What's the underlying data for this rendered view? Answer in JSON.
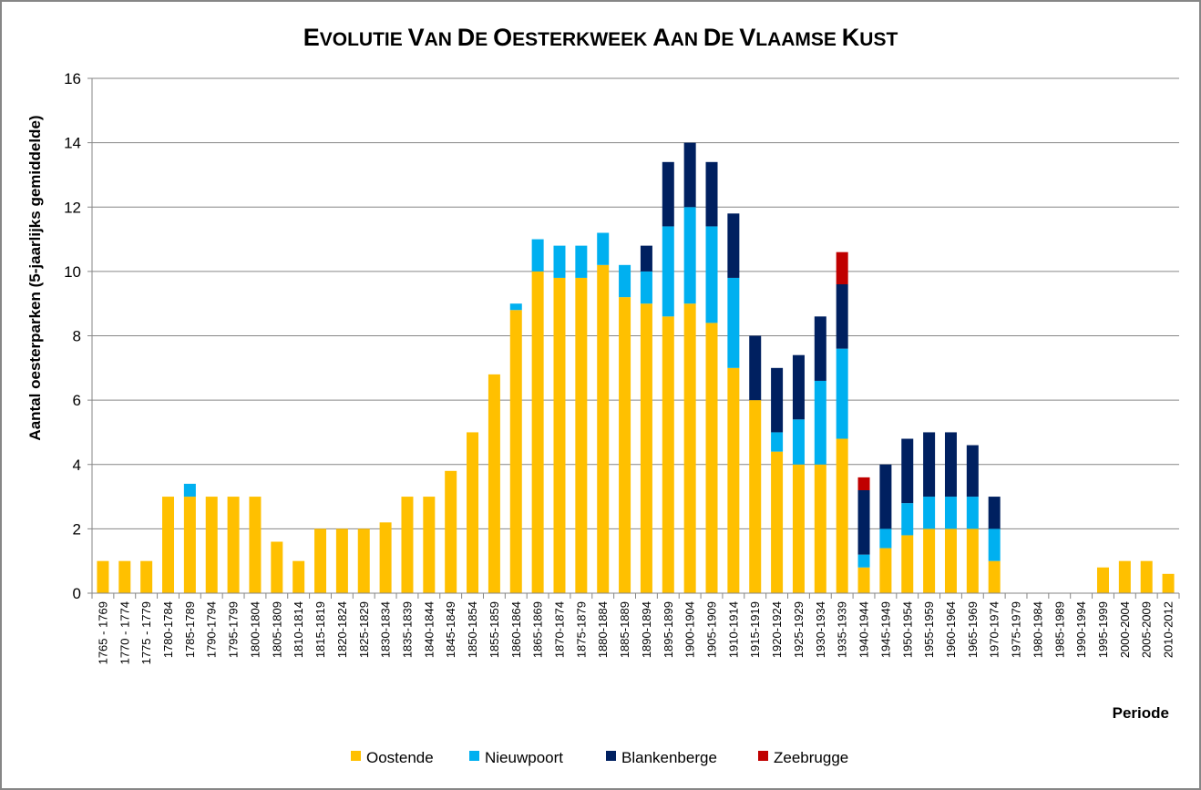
{
  "chart_data": {
    "type": "bar",
    "stacked": true,
    "title": "Evolutie van de oesterkweek aan de Vlaamse kust",
    "xlabel": "Periode",
    "ylabel": "Aantal oesterparken (5-jaarlijks gemiddelde)",
    "ylim": [
      0,
      16
    ],
    "yticks": [
      0,
      2,
      4,
      6,
      8,
      10,
      12,
      14,
      16
    ],
    "grid": true,
    "legend_position": "bottom",
    "categories": [
      "1765 - 1769",
      "1770 - 1774",
      "1775 - 1779",
      "1780-1784",
      "1785-1789",
      "1790-1794",
      "1795-1799",
      "1800-1804",
      "1805-1809",
      "1810-1814",
      "1815-1819",
      "1820-1824",
      "1825-1829",
      "1830-1834",
      "1835-1839",
      "1840-1844",
      "1845-1849",
      "1850-1854",
      "1855-1859",
      "1860-1864",
      "1865-1869",
      "1870-1874",
      "1875-1879",
      "1880-1884",
      "1885-1889",
      "1890-1894",
      "1895-1899",
      "1900-1904",
      "1905-1909",
      "1910-1914",
      "1915-1919",
      "1920-1924",
      "1925-1929",
      "1930-1934",
      "1935-1939",
      "1940-1944",
      "1945-1949",
      "1950-1954",
      "1955-1959",
      "1960-1964",
      "1965-1969",
      "1970-1974",
      "1975-1979",
      "1980-1984",
      "1985-1989",
      "1990-1994",
      "1995-1999",
      "2000-2004",
      "2005-2009",
      "2010-2012"
    ],
    "series": [
      {
        "name": "Oostende",
        "color": "#FFC000",
        "values": [
          1,
          1,
          1,
          3,
          3,
          3,
          3,
          3,
          1.6,
          1,
          2,
          2,
          2,
          2.2,
          3,
          3,
          3.8,
          5,
          6.8,
          8.8,
          10,
          9.8,
          9.8,
          10.2,
          9.2,
          9,
          8.6,
          9,
          8.4,
          7,
          6,
          4.4,
          4,
          4,
          4.8,
          0.8,
          1.4,
          1.8,
          2,
          2,
          2,
          1,
          0,
          0,
          0,
          0,
          0.8,
          1,
          1,
          0.6
        ]
      },
      {
        "name": "Nieuwpoort",
        "color": "#00B0F0",
        "values": [
          0,
          0,
          0,
          0,
          0.4,
          0,
          0,
          0,
          0,
          0,
          0,
          0,
          0,
          0,
          0,
          0,
          0,
          0,
          0,
          0.2,
          1,
          1,
          1,
          1,
          1,
          1,
          2.8,
          3,
          3,
          2.8,
          0,
          0.6,
          1.4,
          2.6,
          2.8,
          0.4,
          0.6,
          1,
          1,
          1,
          1,
          1,
          0,
          0,
          0,
          0,
          0,
          0,
          0,
          0
        ]
      },
      {
        "name": "Blankenberge",
        "color": "#002060",
        "values": [
          0,
          0,
          0,
          0,
          0,
          0,
          0,
          0,
          0,
          0,
          0,
          0,
          0,
          0,
          0,
          0,
          0,
          0,
          0,
          0,
          0,
          0,
          0,
          0,
          0,
          0.8,
          2,
          2,
          2,
          2,
          2,
          2,
          2,
          2,
          2,
          2,
          2,
          2,
          2,
          2,
          1.6,
          1,
          0,
          0,
          0,
          0,
          0,
          0,
          0,
          0
        ]
      },
      {
        "name": "Zeebrugge",
        "color": "#C00000",
        "values": [
          0,
          0,
          0,
          0,
          0,
          0,
          0,
          0,
          0,
          0,
          0,
          0,
          0,
          0,
          0,
          0,
          0,
          0,
          0,
          0,
          0,
          0,
          0,
          0,
          0,
          0,
          0,
          0,
          0,
          0,
          0,
          0,
          0,
          0,
          1,
          0.4,
          0,
          0,
          0,
          0,
          0,
          0,
          0,
          0,
          0,
          0,
          0,
          0,
          0,
          0
        ]
      }
    ]
  }
}
